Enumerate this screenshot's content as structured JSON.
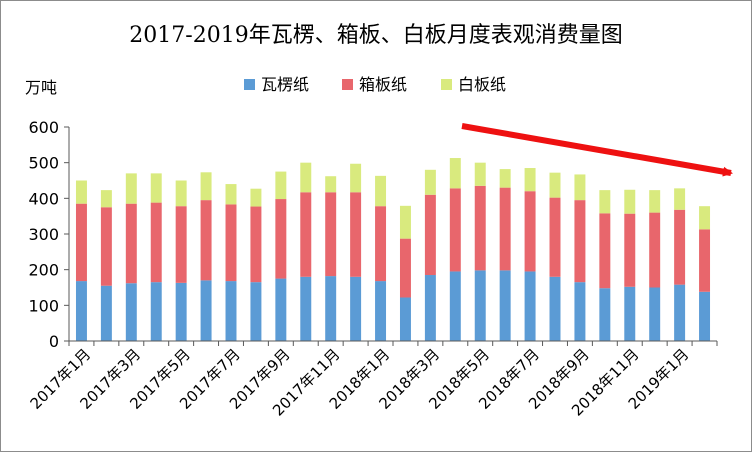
{
  "chart_data": {
    "type": "bar",
    "stacked": true,
    "title": "2017-2019年瓦楞、箱板、白板月度表观消费量图",
    "ylabel": "万吨",
    "xlabel": "",
    "ylim": [
      0,
      600
    ],
    "yticks": [
      0,
      100,
      200,
      300,
      400,
      500,
      600
    ],
    "grid": false,
    "legend": "top",
    "categories": [
      "2017年1月",
      "2017年2月",
      "2017年3月",
      "2017年4月",
      "2017年5月",
      "2017年6月",
      "2017年7月",
      "2017年8月",
      "2017年9月",
      "2017年10月",
      "2017年11月",
      "2017年12月",
      "2018年1月",
      "2018年2月",
      "2018年3月",
      "2018年4月",
      "2018年5月",
      "2018年6月",
      "2018年7月",
      "2018年8月",
      "2018年9月",
      "2018年10月",
      "2018年11月",
      "2018年12月",
      "2019年1月",
      "2019年2月"
    ],
    "tick_labels": [
      "2017年1月",
      "",
      "2017年3月",
      "",
      "2017年5月",
      "",
      "2017年7月",
      "",
      "2017年9月",
      "",
      "2017年11月",
      "",
      "2018年1月",
      "",
      "2018年3月",
      "",
      "2018年5月",
      "",
      "2018年7月",
      "",
      "2018年9月",
      "",
      "2018年11月",
      "",
      "2019年1月",
      ""
    ],
    "series": [
      {
        "name": "瓦楞纸",
        "color": "#5b9bd5",
        "values": [
          168,
          155,
          162,
          165,
          163,
          170,
          168,
          165,
          175,
          180,
          182,
          180,
          168,
          122,
          185,
          195,
          198,
          198,
          195,
          180,
          165,
          148,
          152,
          150,
          158,
          138
        ]
      },
      {
        "name": "箱板纸",
        "color": "#e8666c",
        "values": [
          217,
          220,
          223,
          223,
          215,
          225,
          215,
          212,
          223,
          237,
          235,
          237,
          210,
          165,
          225,
          233,
          237,
          232,
          225,
          222,
          230,
          210,
          205,
          210,
          210,
          175
        ]
      },
      {
        "name": "白板纸",
        "color": "#d9ea7e",
        "values": [
          65,
          48,
          85,
          82,
          72,
          78,
          57,
          50,
          77,
          83,
          45,
          80,
          85,
          92,
          70,
          85,
          65,
          52,
          65,
          70,
          72,
          65,
          67,
          63,
          60,
          65
        ]
      }
    ],
    "annotation": {
      "type": "arrow",
      "color": "#ee1111",
      "direction": "downward-trend"
    }
  }
}
